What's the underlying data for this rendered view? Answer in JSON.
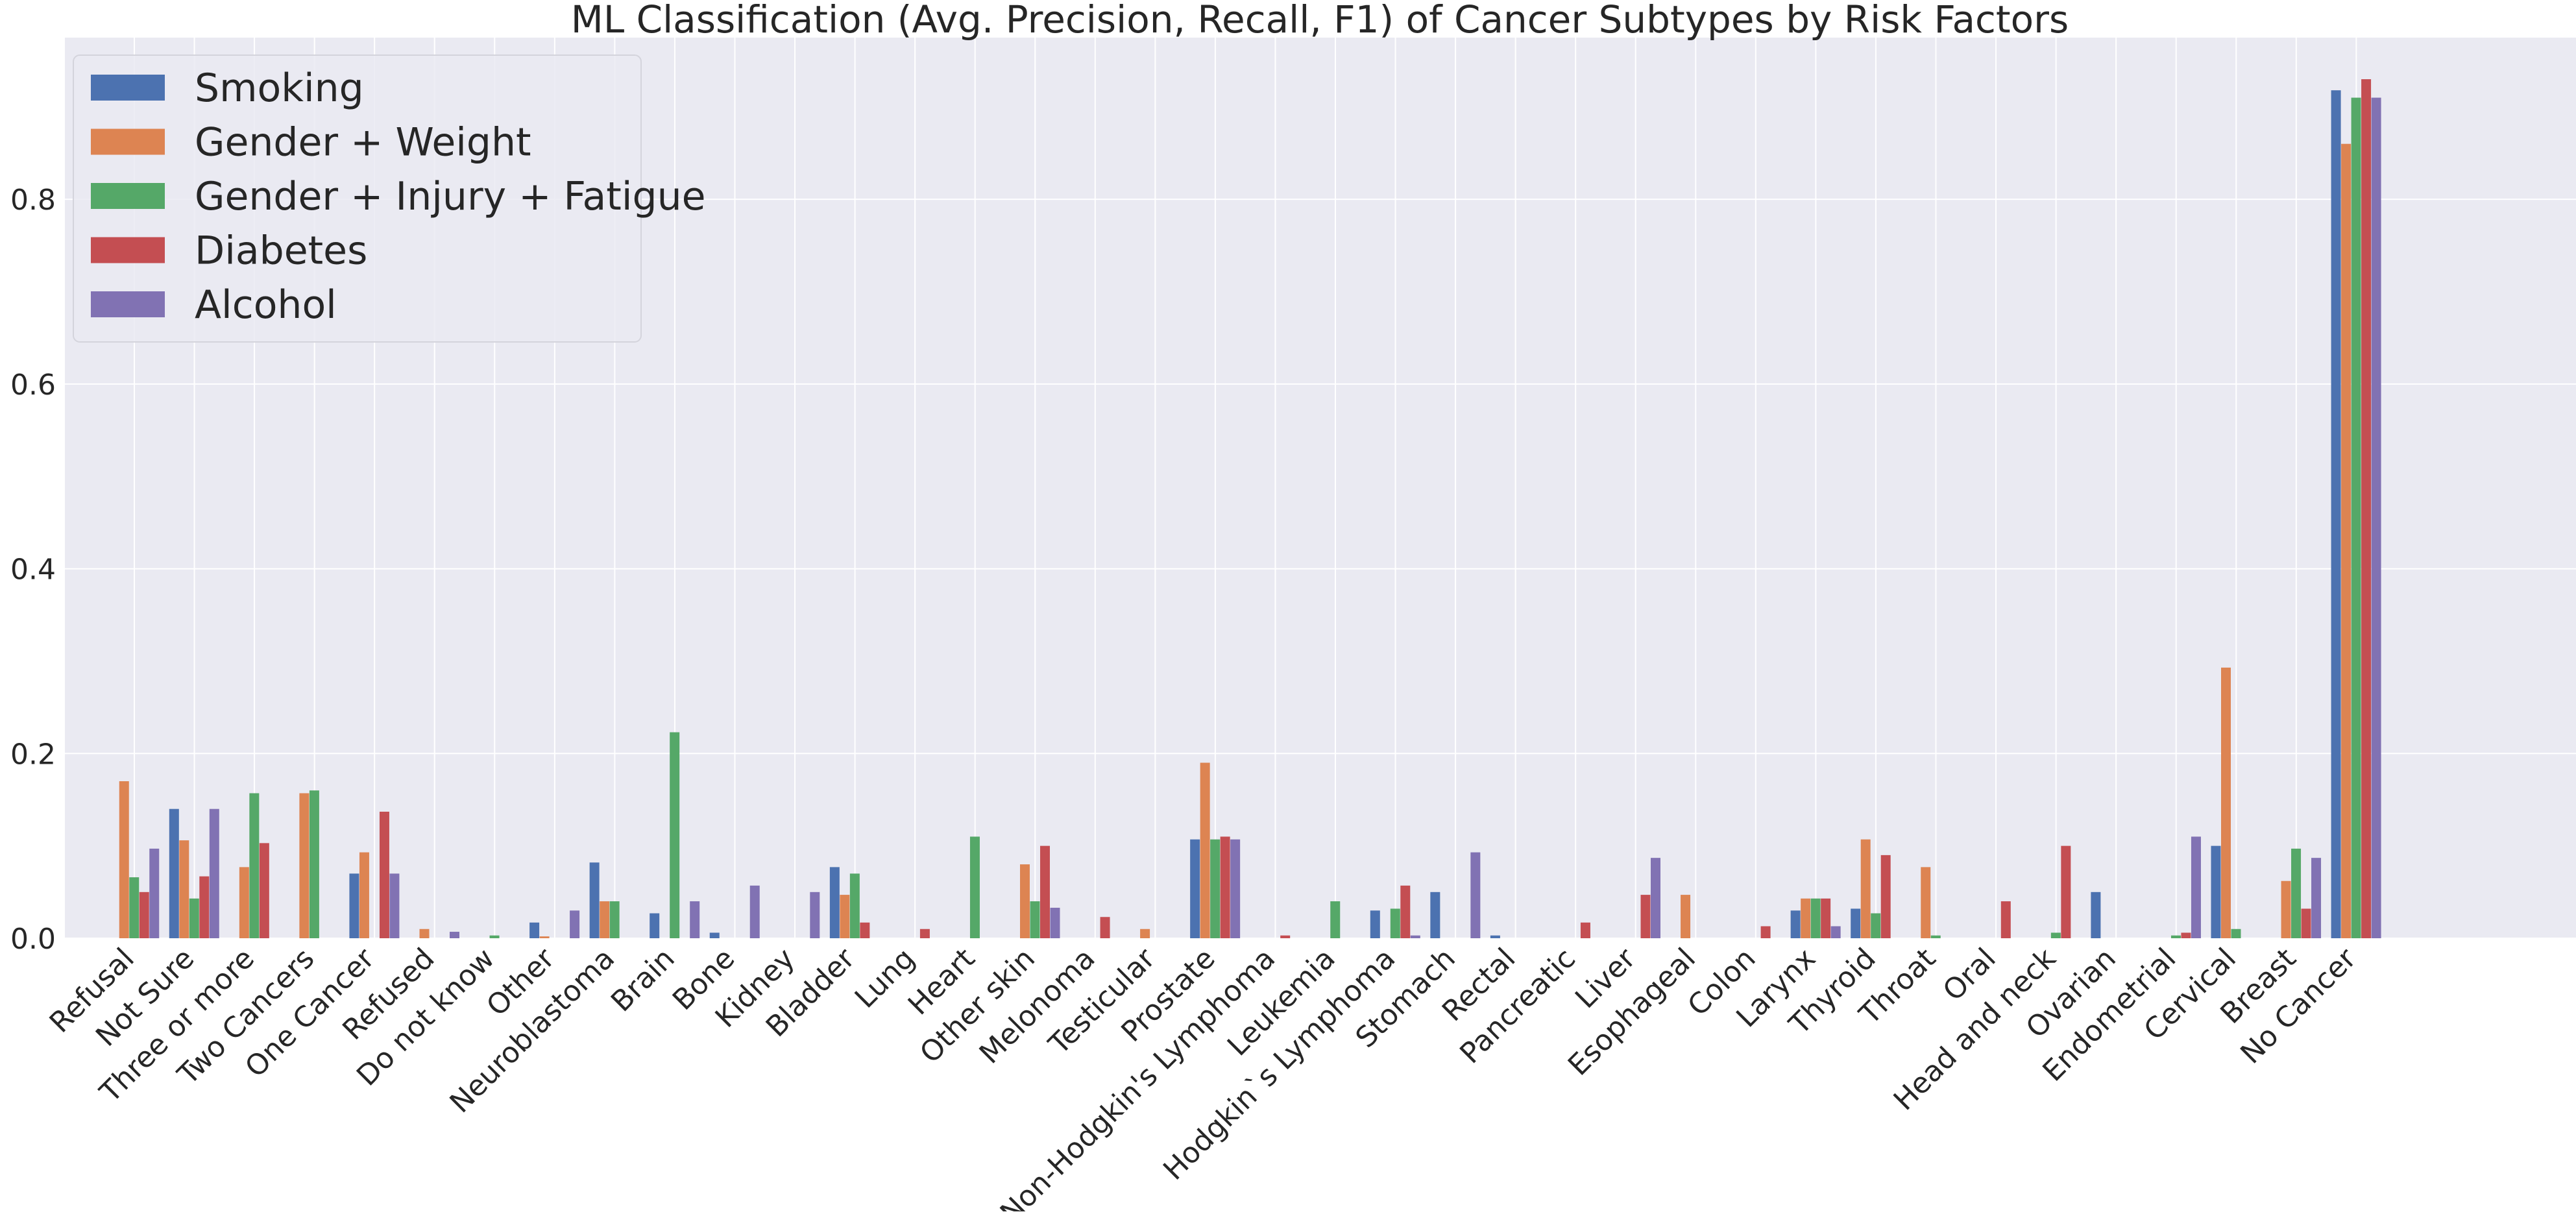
{
  "chart_data": {
    "type": "bar",
    "title": "ML Classification (Avg. Precision, Recall, F1) of Cancer Subtypes by Risk Factors",
    "xlabel": "",
    "ylabel": "",
    "ylim": [
      0,
      0.975
    ],
    "yticks": [
      "0.0",
      "0.2",
      "0.4",
      "0.6",
      "0.8"
    ],
    "grid": true,
    "legend_position": "top-left",
    "categories": [
      "Refusal",
      "Not Sure",
      "Three or more",
      "Two Cancers",
      "One Cancer",
      "Refused",
      "Do not know",
      "Other",
      "Neuroblastoma",
      "Brain",
      "Bone",
      "Kidney",
      "Bladder",
      "Lung",
      "Heart",
      "Other skin",
      "Melonoma",
      "Testicular",
      "Prostate",
      "Non-Hodgkin's Lymphoma",
      "Leukemia",
      "Hodgkin`s Lymphoma",
      "Stomach",
      "Rectal",
      "Pancreatic",
      "Liver",
      "Esophageal",
      "Colon",
      "Larynx",
      "Thyroid",
      "Throat",
      "Oral",
      "Head and neck",
      "Ovarian",
      "Endometrial",
      "Cervical",
      "Breast",
      "No Cancer"
    ],
    "series": [
      {
        "name": "Smoking",
        "color": "#4c72b0",
        "values": [
          0,
          0.14,
          0,
          0,
          0.07,
          0,
          0,
          0.017,
          0.082,
          0.027,
          0.006,
          0,
          0.077,
          0,
          0,
          0,
          0,
          0,
          0.107,
          0,
          0,
          0.03,
          0.05,
          0.003,
          0,
          0,
          0,
          0,
          0.03,
          0.032,
          0,
          0,
          0,
          0.05,
          0,
          0.1,
          0,
          0.918
        ]
      },
      {
        "name": "Gender + Weight",
        "color": "#dd8452",
        "values": [
          0.17,
          0.106,
          0.077,
          0.157,
          0.093,
          0.01,
          0,
          0.002,
          0.04,
          0,
          0,
          0,
          0.047,
          0,
          0,
          0.08,
          0,
          0.01,
          0.19,
          0,
          0,
          0,
          0,
          0,
          0,
          0,
          0.047,
          0,
          0.043,
          0.107,
          0.077,
          0,
          0,
          0,
          0,
          0.293,
          0.062,
          0.86
        ]
      },
      {
        "name": "Gender + Injury + Fatigue",
        "color": "#55a868",
        "values": [
          0.066,
          0.043,
          0.157,
          0.16,
          0,
          0,
          0.003,
          0,
          0.04,
          0.223,
          0,
          0,
          0.07,
          0,
          0.11,
          0.04,
          0,
          0,
          0.107,
          0,
          0.04,
          0.032,
          0,
          0,
          0,
          0,
          0,
          0,
          0.043,
          0.027,
          0.003,
          0,
          0.006,
          0,
          0.003,
          0.01,
          0.097,
          0.91
        ]
      },
      {
        "name": "Diabetes",
        "color": "#c44e52",
        "values": [
          0.05,
          0.067,
          0.103,
          0,
          0.137,
          0,
          0,
          0,
          0,
          0,
          0,
          0,
          0.017,
          0.01,
          0,
          0.1,
          0.023,
          0,
          0.11,
          0.003,
          0,
          0.057,
          0,
          0,
          0.017,
          0.047,
          0,
          0.013,
          0.043,
          0.09,
          0,
          0.04,
          0.1,
          0,
          0.006,
          0,
          0.032,
          0.93
        ]
      },
      {
        "name": "Alcohol",
        "color": "#8172b3",
        "values": [
          0.097,
          0.14,
          0,
          0,
          0.07,
          0.007,
          0,
          0.03,
          0,
          0.04,
          0.057,
          0.05,
          0,
          0,
          0,
          0.033,
          0,
          0,
          0.107,
          0,
          0,
          0.003,
          0.093,
          0,
          0,
          0.087,
          0,
          0,
          0.013,
          0,
          0,
          0,
          0,
          0,
          0.11,
          0,
          0.087,
          0.91
        ]
      }
    ]
  }
}
